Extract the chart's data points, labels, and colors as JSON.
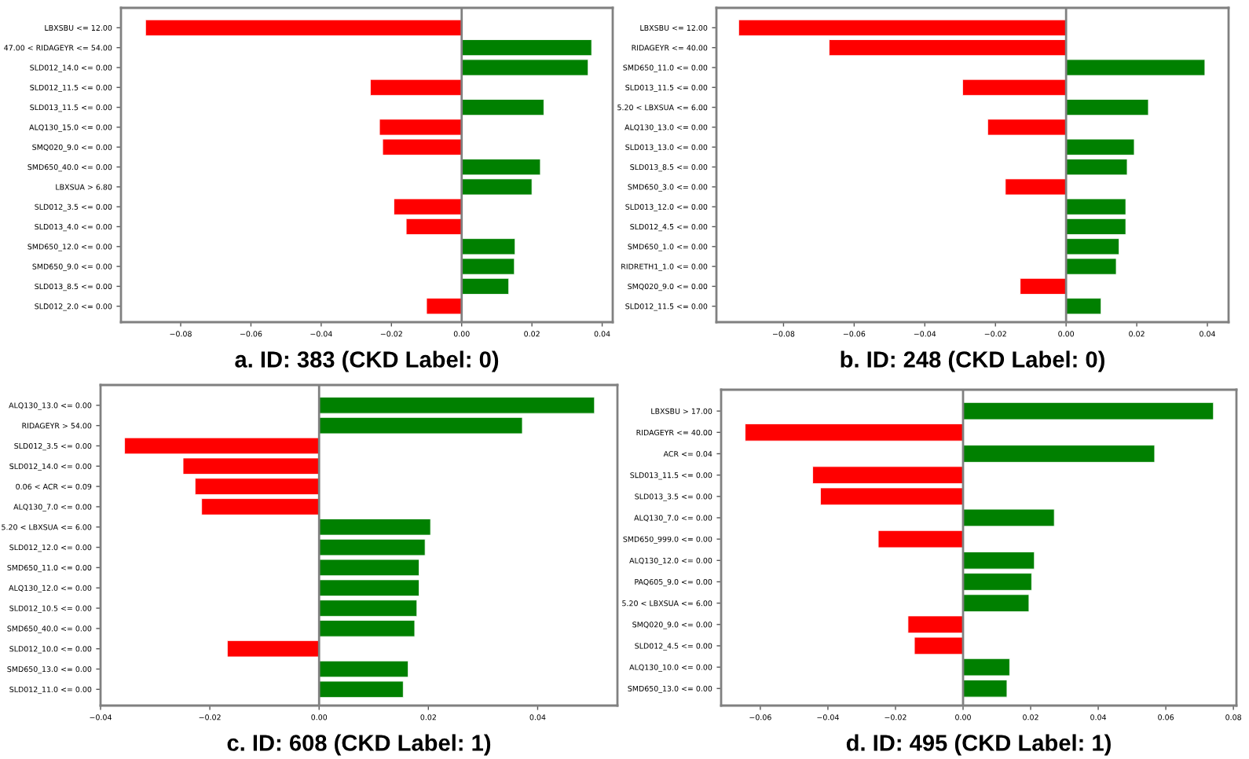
{
  "chart_data": [
    {
      "type": "bar",
      "orientation": "horizontal",
      "title": "a. ID: 383 (CKD Label: 0)",
      "categories": [
        "LBXSBU <= 12.00",
        "47.00 < RIDAGEYR <= 54.00",
        "SLD012_14.0 <= 0.00",
        "SLD012_11.5 <= 0.00",
        "SLD013_11.5 <= 0.00",
        "ALQ130_15.0 <= 0.00",
        "SMQ020_9.0 <= 0.00",
        "SMD650_40.0 <= 0.00",
        "LBXSUA > 6.80",
        "SLD012_3.5 <= 0.00",
        "SLD013_4.0 <= 0.00",
        "SMD650_12.0 <= 0.00",
        "SMD650_9.0 <= 0.00",
        "SLD013_8.5 <= 0.00",
        "SLD012_2.0 <= 0.00"
      ],
      "values": [
        -0.09,
        0.037,
        0.036,
        -0.026,
        0.0234,
        -0.0234,
        -0.0225,
        0.0224,
        0.02,
        -0.0193,
        -0.0158,
        0.0152,
        0.015,
        0.0134,
        -0.01
      ],
      "colors": [
        "#ff0000",
        "#008000",
        "#008000",
        "#ff0000",
        "#008000",
        "#ff0000",
        "#ff0000",
        "#008000",
        "#008000",
        "#ff0000",
        "#ff0000",
        "#008000",
        "#008000",
        "#008000",
        "#ff0000"
      ],
      "xlim": [
        -0.097,
        0.043
      ],
      "xticks": [
        {
          "value": -0.08,
          "label": "−0.08"
        },
        {
          "value": -0.06,
          "label": "−0.06"
        },
        {
          "value": -0.04,
          "label": "−0.04"
        },
        {
          "value": -0.02,
          "label": "−0.02"
        },
        {
          "value": 0,
          "label": "0.00"
        },
        {
          "value": 0.02,
          "label": "0.02"
        },
        {
          "value": 0.04,
          "label": "0.04"
        }
      ],
      "ref_lines": [
        {
          "axis": "x",
          "value": 0,
          "color": "#808080"
        }
      ],
      "grid": false
    },
    {
      "type": "bar",
      "orientation": "horizontal",
      "title": "b. ID: 248 (CKD Label: 0)",
      "categories": [
        "LBXSBU <= 12.00",
        "RIDAGEYR <= 40.00",
        "SMD650_11.0 <= 0.00",
        "SLD013_11.5 <= 0.00",
        "5.20 < LBXSUA <= 6.00",
        "ALQ130_13.0 <= 0.00",
        "SLD013_13.0 <= 0.00",
        "SLD013_8.5 <= 0.00",
        "SMD650_3.0 <= 0.00",
        "SLD013_12.0 <= 0.00",
        "SLD012_4.5 <= 0.00",
        "SMD650_1.0 <= 0.00",
        "RIDRETH1_1.0 <= 0.00",
        "SMQ020_9.0 <= 0.00",
        "SLD012_11.5 <= 0.00"
      ],
      "values": [
        -0.0927,
        -0.0671,
        0.0393,
        -0.0293,
        0.0233,
        -0.0222,
        0.0193,
        0.0173,
        -0.0172,
        0.0169,
        0.0169,
        0.015,
        0.0142,
        -0.013,
        0.0099
      ],
      "colors": [
        "#ff0000",
        "#ff0000",
        "#008000",
        "#ff0000",
        "#008000",
        "#ff0000",
        "#008000",
        "#008000",
        "#ff0000",
        "#008000",
        "#008000",
        "#008000",
        "#008000",
        "#ff0000",
        "#008000"
      ],
      "xlim": [
        -0.099,
        0.046
      ],
      "xticks": [
        {
          "value": -0.08,
          "label": "−0.08"
        },
        {
          "value": -0.06,
          "label": "−0.06"
        },
        {
          "value": -0.04,
          "label": "−0.04"
        },
        {
          "value": -0.02,
          "label": "−0.02"
        },
        {
          "value": 0,
          "label": "0.00"
        },
        {
          "value": 0.02,
          "label": "0.02"
        },
        {
          "value": 0.04,
          "label": "0.04"
        }
      ],
      "ref_lines": [
        {
          "axis": "x",
          "value": 0,
          "color": "#808080"
        }
      ],
      "grid": false
    },
    {
      "type": "bar",
      "orientation": "horizontal",
      "title": "c. ID: 608 (CKD Label: 1)",
      "categories": [
        "ALQ130_13.0 <= 0.00",
        "RIDAGEYR > 54.00",
        "SLD012_3.5 <= 0.00",
        "SLD012_14.0 <= 0.00",
        "0.06 < ACR <= 0.09",
        "ALQ130_7.0 <= 0.00",
        "5.20 < LBXSUA <= 6.00",
        "SLD012_12.0 <= 0.00",
        "SMD650_11.0 <= 0.00",
        "ALQ130_12.0 <= 0.00",
        "SLD012_10.5 <= 0.00",
        "SMD650_40.0 <= 0.00",
        "SLD012_10.0 <= 0.00",
        "SMD650_13.0 <= 0.00",
        "SLD012_11.0 <= 0.00"
      ],
      "values": [
        0.0504,
        0.0372,
        -0.0356,
        -0.0249,
        -0.0227,
        -0.0215,
        0.0204,
        0.0194,
        0.0183,
        0.0183,
        0.0179,
        0.0175,
        -0.0168,
        0.0163,
        0.0154
      ],
      "colors": [
        "#008000",
        "#008000",
        "#ff0000",
        "#ff0000",
        "#ff0000",
        "#ff0000",
        "#008000",
        "#008000",
        "#008000",
        "#008000",
        "#008000",
        "#008000",
        "#ff0000",
        "#008000",
        "#008000"
      ],
      "xlim": [
        -0.04,
        0.0546
      ],
      "xticks": [
        {
          "value": -0.04,
          "label": "−0.04"
        },
        {
          "value": -0.02,
          "label": "−0.02"
        },
        {
          "value": 0,
          "label": "0.00"
        },
        {
          "value": 0.02,
          "label": "0.02"
        },
        {
          "value": 0.04,
          "label": "0.04"
        }
      ],
      "ref_lines": [
        {
          "axis": "x",
          "value": 0,
          "color": "#808080"
        }
      ],
      "grid": false
    },
    {
      "type": "bar",
      "orientation": "horizontal",
      "title": "d. ID: 495 (CKD Label: 1)",
      "categories": [
        "LBXSBU > 17.00",
        "RIDAGEYR <= 40.00",
        "ACR <= 0.04",
        "SLD013_11.5 <= 0.00",
        "SLD013_3.5 <= 0.00",
        "ALQ130_7.0 <= 0.00",
        "SMD650_999.0 <= 0.00",
        "ALQ130_12.0 <= 0.00",
        "PAQ605_9.0 <= 0.00",
        "5.20 < LBXSUA <= 6.00",
        "SMQ020_9.0 <= 0.00",
        "SLD012_4.5 <= 0.00",
        "ALQ130_10.0 <= 0.00",
        "SMD650_13.0 <= 0.00"
      ],
      "values": [
        0.0741,
        -0.0645,
        0.0567,
        -0.0445,
        -0.0422,
        0.027,
        -0.0251,
        0.0211,
        0.0203,
        0.0195,
        -0.0163,
        -0.0144,
        0.0138,
        0.013
      ],
      "colors": [
        "#008000",
        "#ff0000",
        "#008000",
        "#ff0000",
        "#ff0000",
        "#008000",
        "#ff0000",
        "#008000",
        "#008000",
        "#008000",
        "#ff0000",
        "#ff0000",
        "#008000",
        "#008000"
      ],
      "xlim": [
        -0.0716,
        0.0809
      ],
      "xticks": [
        {
          "value": -0.06,
          "label": "−0.06"
        },
        {
          "value": -0.04,
          "label": "−0.04"
        },
        {
          "value": -0.02,
          "label": "−0.02"
        },
        {
          "value": 0,
          "label": "0.00"
        },
        {
          "value": 0.02,
          "label": "0.02"
        },
        {
          "value": 0.04,
          "label": "0.04"
        },
        {
          "value": 0.06,
          "label": "0.06"
        },
        {
          "value": 0.08,
          "label": "0.08"
        }
      ],
      "ref_lines": [
        {
          "axis": "x",
          "value": 0,
          "color": "#808080"
        }
      ],
      "grid": false
    }
  ]
}
